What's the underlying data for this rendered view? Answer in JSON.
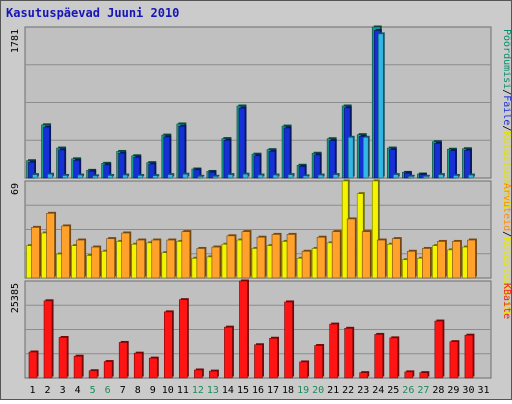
{
  "chart_data": {
    "type": "bar",
    "title": "Kasutuspäevad Juuni 2010",
    "categories": [
      "1",
      "2",
      "3",
      "4",
      "5",
      "6",
      "7",
      "8",
      "9",
      "10",
      "11",
      "12",
      "13",
      "14",
      "15",
      "16",
      "17",
      "18",
      "19",
      "20",
      "21",
      "22",
      "23",
      "24",
      "25",
      "26",
      "27",
      "28",
      "29",
      "30",
      "31"
    ],
    "weekend_days": [
      "5",
      "6",
      "12",
      "13",
      "19",
      "20",
      "26",
      "27"
    ],
    "panels": [
      {
        "id": "panel1",
        "ytick_label": "1781",
        "ylim": [
          0,
          1781
        ],
        "legend": [
          {
            "label": "Pöördumisi",
            "color": "#0c8c6c"
          },
          {
            "label": "/",
            "color": "#000000"
          },
          {
            "label": "Faile",
            "color": "#1a2ed4"
          },
          {
            "label": "/",
            "color": "#000000"
          },
          {
            "label": "Külastuskordi",
            "color": "#e0e000"
          }
        ],
        "series": [
          {
            "name": "Pöördumisi",
            "color": "#13a087",
            "values": [
              204,
              627,
              353,
              226,
              90,
              173,
              313,
              262,
              181,
              506,
              637,
              106,
              77,
              465,
              849,
              281,
              334,
              612,
              150,
              292,
              463,
              849,
              511,
              1781,
              353,
              66,
              47,
              428,
              339,
              345,
              0
            ]
          },
          {
            "name": "Faile",
            "color": "#1530d6",
            "values": [
              186,
              600,
              331,
              208,
              80,
              155,
              292,
              244,
              165,
              485,
              610,
              96,
              69,
              445,
              824,
              262,
              314,
              590,
              136,
              272,
              441,
              828,
              490,
              1740,
              334,
              58,
              41,
              408,
              322,
              327,
              0
            ]
          },
          {
            "name": "Külastuskordi",
            "color": "#33b8e6",
            "values": [
              40,
              45,
              30,
              35,
              25,
              30,
              35,
              30,
              28,
              40,
              45,
              20,
              20,
              40,
              45,
              35,
              35,
              40,
              25,
              35,
              40,
              480,
              480,
              1700,
              40,
              20,
              20,
              40,
              30,
              35,
              0
            ]
          }
        ]
      },
      {
        "id": "panel2",
        "ytick_label": "69",
        "ylim": [
          0,
          69
        ],
        "legend": [
          {
            "label": "Arvuteid",
            "color": "#ff8c00"
          },
          {
            "label": "/",
            "color": "#000000"
          },
          {
            "label": "Külastuskordi",
            "color": "#e8e800"
          }
        ],
        "series": [
          {
            "name": "Külastuskordi",
            "color": "#f4f400",
            "values": [
              23,
              32,
              17,
              23,
              16,
              19,
              26,
              24,
              25,
              18,
              26,
              14,
              15,
              24,
              27,
              21,
              23,
              26,
              14,
              21,
              25,
              69,
              60,
              69,
              24,
              13,
              14,
              23,
              20,
              22,
              0
            ]
          },
          {
            "name": "Arvuteid",
            "color": "#ffa12a",
            "values": [
              36,
              46,
              37,
              27,
              22,
              28,
              32,
              27,
              27,
              27,
              33,
              21,
              22,
              30,
              33,
              29,
              31,
              31,
              19,
              29,
              33,
              42,
              33,
              27,
              28,
              19,
              21,
              26,
              26,
              27,
              0
            ]
          }
        ]
      },
      {
        "id": "panel3",
        "ytick_label": "25385",
        "ylim": [
          0,
          25385
        ],
        "legend": [
          {
            "label": "KBaite",
            "color": "#ee2020"
          }
        ],
        "series": [
          {
            "name": "KBaite",
            "color": "#ff1414",
            "values": [
              6800,
              20200,
              10600,
              5700,
              1900,
              4300,
              9300,
              6500,
              5200,
              17300,
              20500,
              2100,
              1800,
              13300,
              25385,
              8700,
              10400,
              19900,
              4200,
              8500,
              14100,
              13000,
              1400,
              11400,
              10500,
              1600,
              1400,
              14900,
              9500,
              11200,
              0
            ]
          }
        ]
      }
    ]
  }
}
